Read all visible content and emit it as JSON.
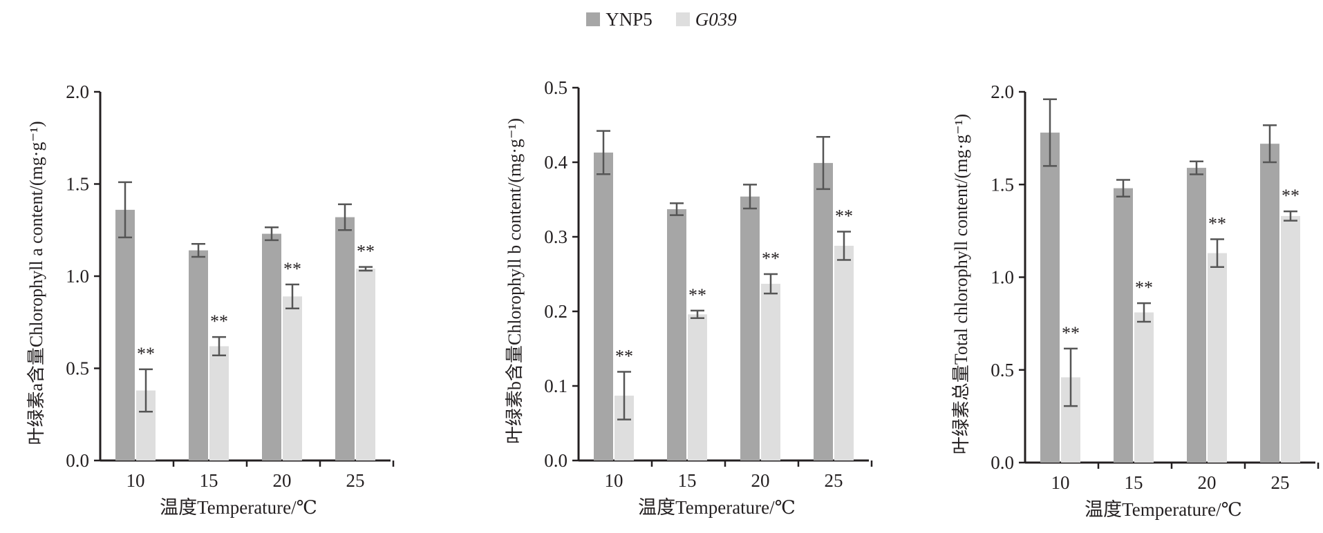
{
  "legend": {
    "items": [
      {
        "label": "YNP5",
        "color": "#a6a6a6",
        "italic": false
      },
      {
        "label": "G039",
        "color": "#dedede",
        "italic": true
      }
    ]
  },
  "colors": {
    "ynp5": "#a6a6a6",
    "g039": "#dedede",
    "axis": "#231f20",
    "error_bar": "#555555"
  },
  "chart_data": [
    {
      "type": "bar",
      "title": "",
      "ylabel": "叶绿素a含量Chlorophyll a content/(mg·g⁻¹)",
      "xlabel": "温度Temperature/℃",
      "categories": [
        "10",
        "15",
        "20",
        "25"
      ],
      "ylim": [
        0,
        2.0
      ],
      "yticks": [
        "0.0",
        "0.5",
        "1.0",
        "1.5",
        "2.0"
      ],
      "series": [
        {
          "name": "YNP5",
          "values": [
            1.36,
            1.14,
            1.23,
            1.32
          ],
          "errors": [
            0.15,
            0.035,
            0.035,
            0.07
          ]
        },
        {
          "name": "G039",
          "values": [
            0.38,
            0.62,
            0.89,
            1.04
          ],
          "errors": [
            0.115,
            0.05,
            0.065,
            0.01
          ]
        }
      ],
      "annotations": [
        "**",
        "**",
        "**",
        "**"
      ],
      "grid": false
    },
    {
      "type": "bar",
      "title": "",
      "ylabel": "叶绿素b含量Chlorophyll b content/(mg·g⁻¹)",
      "xlabel": "温度Temperature/℃",
      "categories": [
        "10",
        "15",
        "20",
        "25"
      ],
      "ylim": [
        0,
        0.5
      ],
      "yticks": [
        "0.0",
        "0.1",
        "0.2",
        "0.3",
        "0.4",
        "0.5"
      ],
      "series": [
        {
          "name": "YNP5",
          "values": [
            0.413,
            0.337,
            0.354,
            0.399
          ],
          "errors": [
            0.029,
            0.008,
            0.016,
            0.035
          ]
        },
        {
          "name": "G039",
          "values": [
            0.087,
            0.196,
            0.237,
            0.288
          ],
          "errors": [
            0.032,
            0.005,
            0.013,
            0.019
          ]
        }
      ],
      "annotations": [
        "**",
        "**",
        "**",
        "**"
      ],
      "grid": false
    },
    {
      "type": "bar",
      "title": "",
      "ylabel": "叶绿素总量Total chlorophyll content/(mg·g⁻¹)",
      "xlabel": "温度Temperature/℃",
      "categories": [
        "10",
        "15",
        "20",
        "25"
      ],
      "ylim": [
        0,
        2.0
      ],
      "yticks": [
        "0.0",
        "0.5",
        "1.0",
        "1.5",
        "2.0"
      ],
      "series": [
        {
          "name": "YNP5",
          "values": [
            1.78,
            1.48,
            1.59,
            1.72
          ],
          "errors": [
            0.18,
            0.045,
            0.035,
            0.1
          ]
        },
        {
          "name": "G039",
          "values": [
            0.46,
            0.81,
            1.13,
            1.33
          ],
          "errors": [
            0.155,
            0.05,
            0.075,
            0.025
          ]
        }
      ],
      "annotations": [
        "**",
        "**",
        "**",
        "**"
      ],
      "grid": false
    }
  ]
}
